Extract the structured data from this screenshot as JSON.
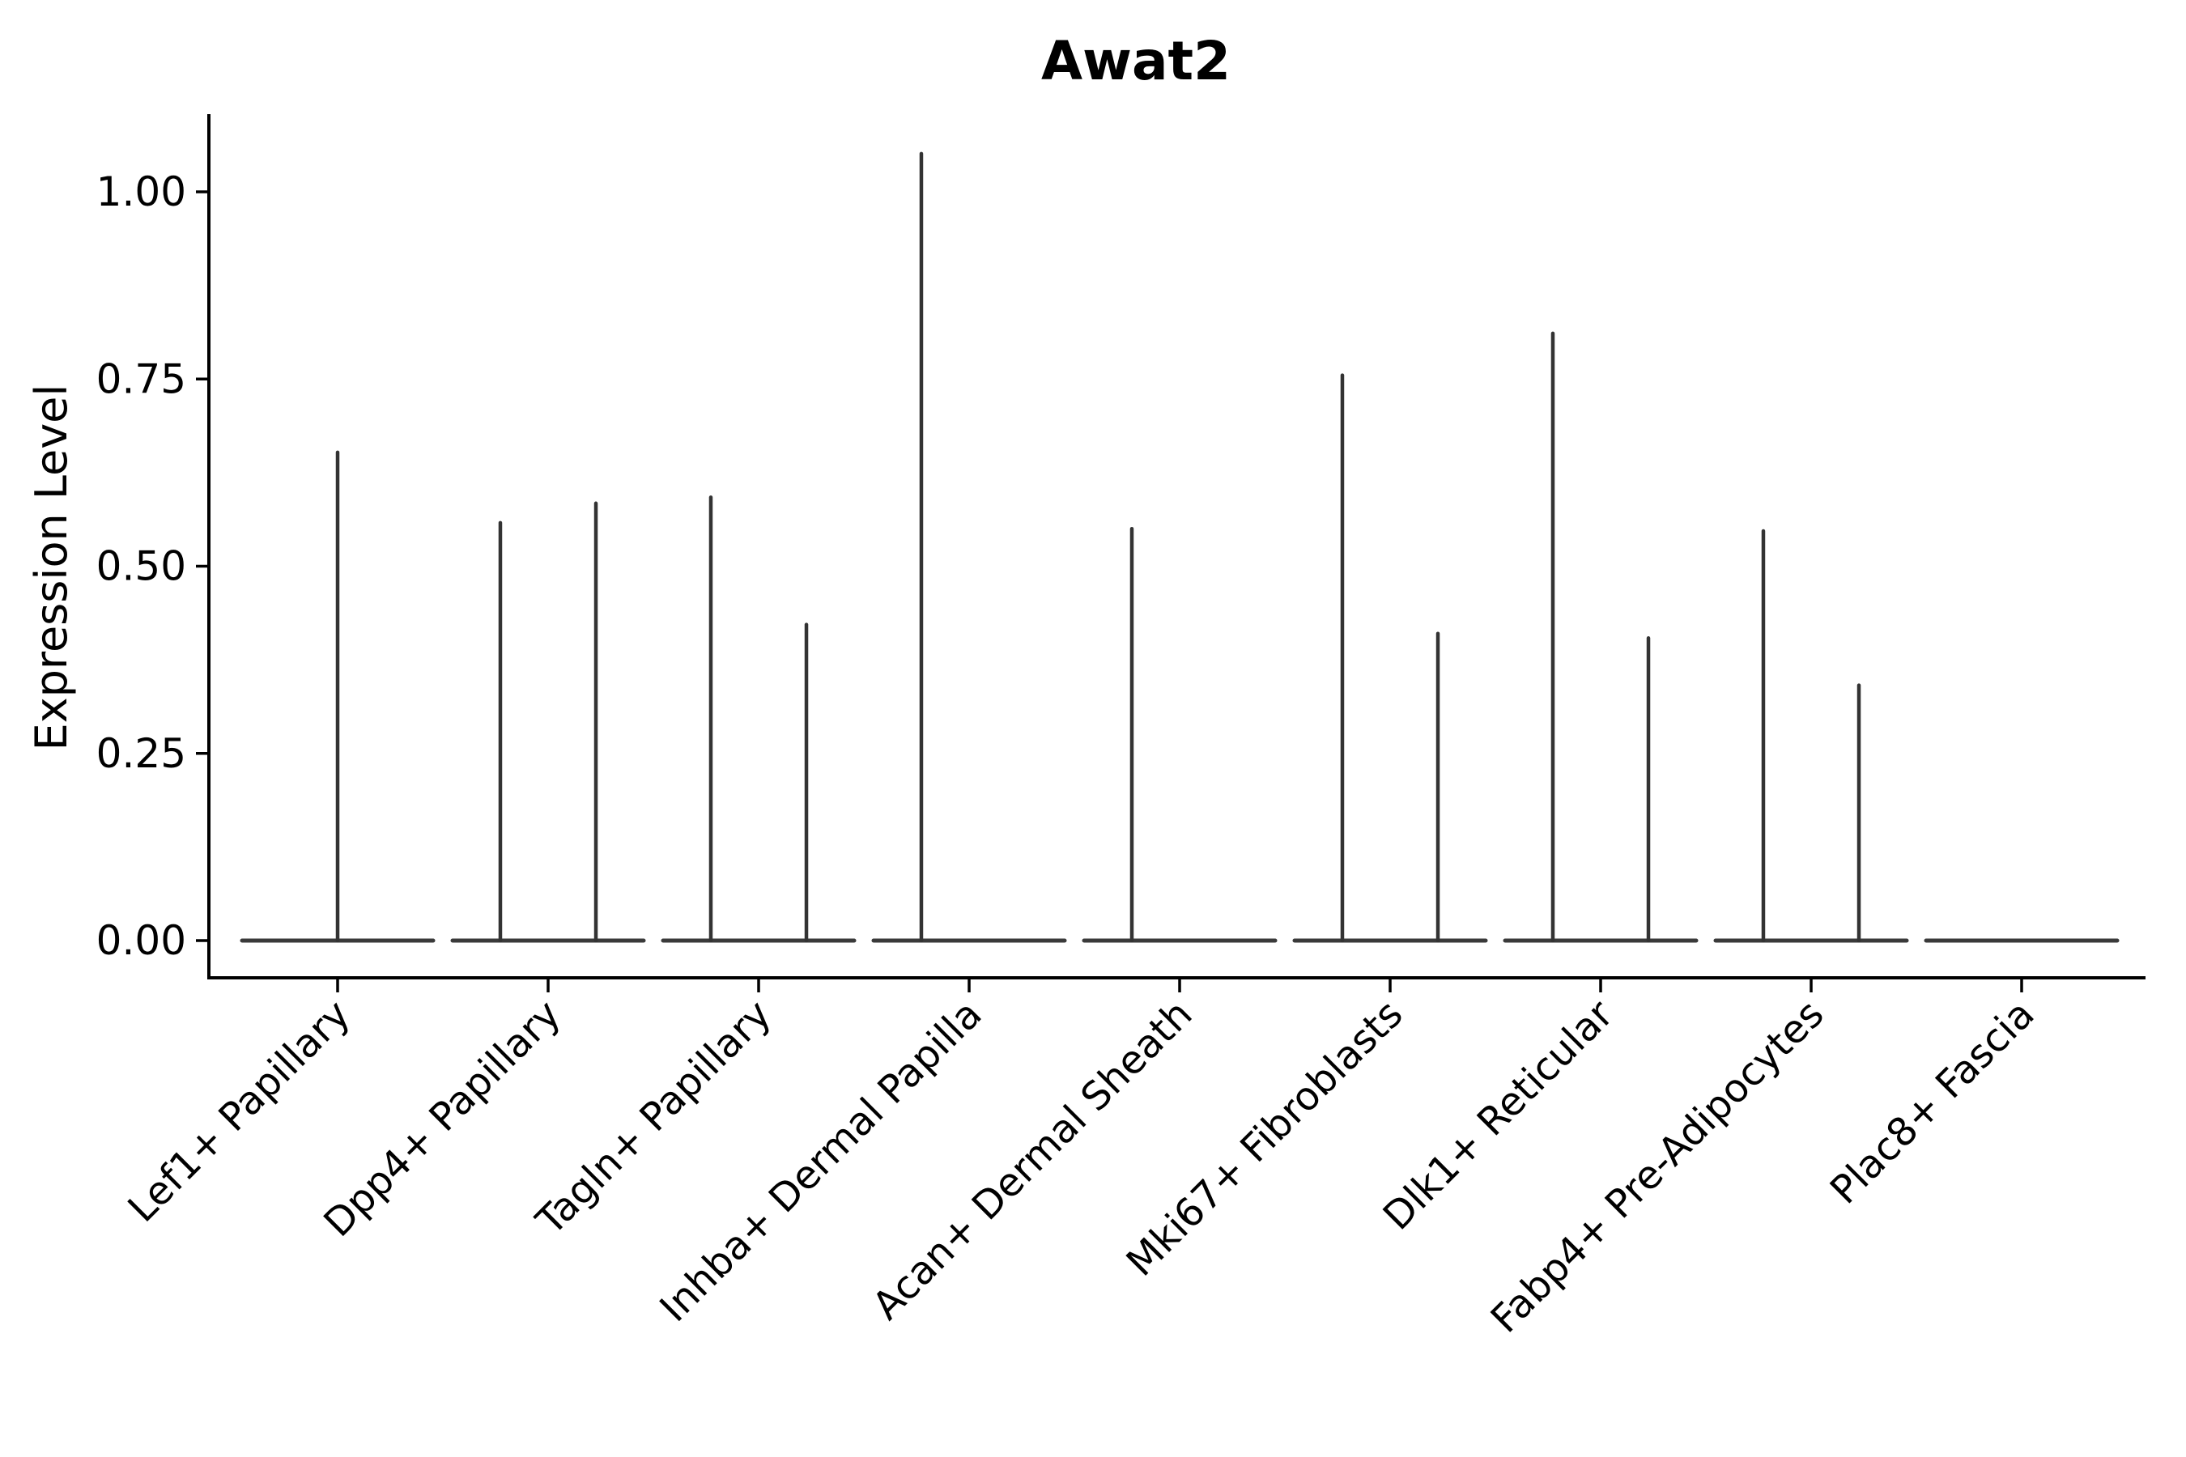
{
  "chart_data": {
    "type": "violin",
    "title": "Awat2",
    "ylabel": "Expression Level",
    "xlabel": "",
    "grid": false,
    "legend": false,
    "background": "#ffffff",
    "axis_color": "#000000",
    "violin_outline_color": "#333333",
    "baseline_color": "#3a3a3a",
    "ylim": [
      -0.05,
      1.1
    ],
    "yticks": [
      {
        "value": 1.0,
        "label": "1.00"
      },
      {
        "value": 0.75,
        "label": "0.75"
      },
      {
        "value": 0.5,
        "label": "0.50"
      },
      {
        "value": 0.25,
        "label": "0.25"
      },
      {
        "value": 0.0,
        "label": "0.00"
      }
    ],
    "categories": [
      "Lef1+ Papillary",
      "Dpp4+ Papillary",
      "Tagln+ Papillary",
      "Inhba+ Dermal Papilla",
      "Acan+ Dermal Sheath",
      "Mki67+ Fibroblasts",
      "Dlk1+ Reticular",
      "Fabp4+ Pre-Adipocytes",
      "Plac8+ Fascia"
    ],
    "violins": [
      {
        "category": "Lef1+ Papillary",
        "baseline": 0.0,
        "spikes": [
          {
            "pos": 0.5,
            "peak": 0.652
          }
        ]
      },
      {
        "category": "Dpp4+ Papillary",
        "baseline": 0.0,
        "spikes": [
          {
            "pos": 0.273,
            "peak": 0.558
          },
          {
            "pos": 0.727,
            "peak": 0.584
          }
        ]
      },
      {
        "category": "Tagln+ Papillary",
        "baseline": 0.0,
        "spikes": [
          {
            "pos": 0.273,
            "peak": 0.592
          },
          {
            "pos": 0.727,
            "peak": 0.422
          }
        ]
      },
      {
        "category": "Inhba+ Dermal Papilla",
        "baseline": 0.0,
        "spikes": [
          {
            "pos": 0.273,
            "peak": 1.051
          }
        ]
      },
      {
        "category": "Acan+ Dermal Sheath",
        "baseline": 0.0,
        "spikes": [
          {
            "pos": 0.273,
            "peak": 0.55
          }
        ]
      },
      {
        "category": "Mki67+ Fibroblasts",
        "baseline": 0.0,
        "spikes": [
          {
            "pos": 0.273,
            "peak": 0.755
          },
          {
            "pos": 0.727,
            "peak": 0.41
          }
        ]
      },
      {
        "category": "Dlk1+ Reticular",
        "baseline": 0.0,
        "spikes": [
          {
            "pos": 0.273,
            "peak": 0.811
          },
          {
            "pos": 0.727,
            "peak": 0.404
          }
        ]
      },
      {
        "category": "Fabp4+ Pre-Adipocytes",
        "baseline": 0.0,
        "spikes": [
          {
            "pos": 0.273,
            "peak": 0.547
          },
          {
            "pos": 0.727,
            "peak": 0.341
          }
        ]
      },
      {
        "category": "Plac8+ Fascia",
        "baseline": 0.0,
        "spikes": []
      }
    ]
  }
}
